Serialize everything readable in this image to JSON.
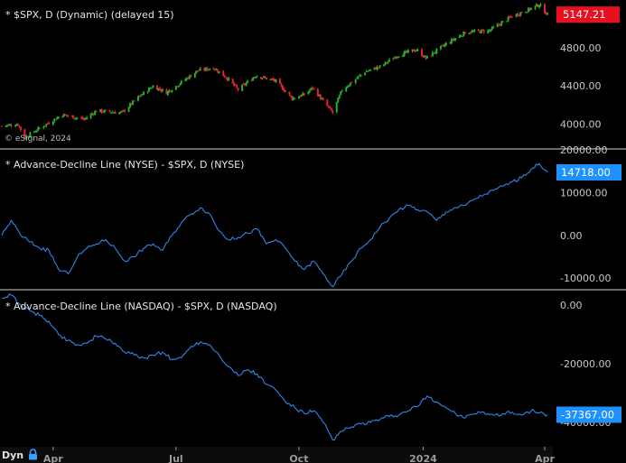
{
  "copyright": "© eSignal, 2024",
  "dyn_label": "Dyn",
  "x_axis": {
    "ticks": [
      {
        "label": "Apr",
        "date": "2023-04-03"
      },
      {
        "label": "Jul",
        "date": "2023-07-03"
      },
      {
        "label": "Oct",
        "date": "2023-10-02"
      },
      {
        "label": "2024",
        "date": "2024-01-02"
      },
      {
        "label": "Apr",
        "date": "2024-04-01"
      }
    ]
  },
  "colors": {
    "background": "#000000",
    "axis_text": "#c8c8c8",
    "separator": "#8a8a8a",
    "candle_up": "#22b32a",
    "candle_down": "#e8232f",
    "line_series": "#2e86e8",
    "price_badge": "#e8101e",
    "value_badge": "#1e90ff",
    "lock_icon": "#3aa0ff"
  },
  "chart_data": [
    {
      "type": "candlestick",
      "title": "* $SPX, D (Dynamic) (delayed 15)",
      "x_range": [
        "2023-02-24",
        "2024-04-03"
      ],
      "ylim": [
        3750,
        5300
      ],
      "y_ticks": [
        {
          "label": "4000.00",
          "value": 4000
        },
        {
          "label": "4400.00",
          "value": 4400
        },
        {
          "label": "4800.00",
          "value": 4800
        }
      ],
      "last_value_label": "5147.21",
      "last_value": 5147.21,
      "close_path": [
        {
          "x": "2023-02-24",
          "y": 3980
        },
        {
          "x": "2023-03-08",
          "y": 4000
        },
        {
          "x": "2023-03-13",
          "y": 3860
        },
        {
          "x": "2023-03-23",
          "y": 3950
        },
        {
          "x": "2023-04-10",
          "y": 4100
        },
        {
          "x": "2023-04-26",
          "y": 4050
        },
        {
          "x": "2023-05-05",
          "y": 4140
        },
        {
          "x": "2023-05-24",
          "y": 4120
        },
        {
          "x": "2023-06-05",
          "y": 4280
        },
        {
          "x": "2023-06-16",
          "y": 4400
        },
        {
          "x": "2023-06-26",
          "y": 4330
        },
        {
          "x": "2023-07-05",
          "y": 4420
        },
        {
          "x": "2023-07-19",
          "y": 4560
        },
        {
          "x": "2023-07-31",
          "y": 4590
        },
        {
          "x": "2023-08-10",
          "y": 4480
        },
        {
          "x": "2023-08-18",
          "y": 4360
        },
        {
          "x": "2023-08-31",
          "y": 4510
        },
        {
          "x": "2023-09-15",
          "y": 4450
        },
        {
          "x": "2023-09-27",
          "y": 4270
        },
        {
          "x": "2023-10-06",
          "y": 4310
        },
        {
          "x": "2023-10-12",
          "y": 4380
        },
        {
          "x": "2023-10-27",
          "y": 4120
        },
        {
          "x": "2023-11-03",
          "y": 4360
        },
        {
          "x": "2023-11-20",
          "y": 4550
        },
        {
          "x": "2023-12-01",
          "y": 4600
        },
        {
          "x": "2023-12-14",
          "y": 4720
        },
        {
          "x": "2023-12-28",
          "y": 4780
        },
        {
          "x": "2024-01-04",
          "y": 4690
        },
        {
          "x": "2024-01-19",
          "y": 4840
        },
        {
          "x": "2024-02-02",
          "y": 4960
        },
        {
          "x": "2024-02-20",
          "y": 4980
        },
        {
          "x": "2024-03-08",
          "y": 5130
        },
        {
          "x": "2024-03-20",
          "y": 5200
        },
        {
          "x": "2024-03-28",
          "y": 5250
        },
        {
          "x": "2024-04-03",
          "y": 5147.21
        }
      ]
    },
    {
      "type": "line",
      "title": "* Advance-Decline Line (NYSE) - $SPX, D (NYSE)",
      "x_range": [
        "2023-02-24",
        "2024-04-03"
      ],
      "ylim": [
        -12500,
        20000
      ],
      "y_ticks": [
        {
          "label": "20000.00",
          "value": 20000
        },
        {
          "label": "10000.00",
          "value": 10000
        },
        {
          "label": "0.00",
          "value": 0
        },
        {
          "label": "-10000.00",
          "value": -10000
        }
      ],
      "last_value_label": "14718.00",
      "last_value": 14718,
      "series": [
        {
          "points": [
            {
              "x": "2023-02-24",
              "y": 0
            },
            {
              "x": "2023-03-03",
              "y": 3500
            },
            {
              "x": "2023-03-10",
              "y": 0
            },
            {
              "x": "2023-03-17",
              "y": -1500
            },
            {
              "x": "2023-03-24",
              "y": -3000
            },
            {
              "x": "2023-03-31",
              "y": -3500
            },
            {
              "x": "2023-04-07",
              "y": -8000
            },
            {
              "x": "2023-04-14",
              "y": -9000
            },
            {
              "x": "2023-04-21",
              "y": -5000
            },
            {
              "x": "2023-04-28",
              "y": -3000
            },
            {
              "x": "2023-05-05",
              "y": -2000
            },
            {
              "x": "2023-05-12",
              "y": -1000
            },
            {
              "x": "2023-05-19",
              "y": -3000
            },
            {
              "x": "2023-05-26",
              "y": -6000
            },
            {
              "x": "2023-06-02",
              "y": -5000
            },
            {
              "x": "2023-06-09",
              "y": -3000
            },
            {
              "x": "2023-06-16",
              "y": -2000
            },
            {
              "x": "2023-06-23",
              "y": -3500
            },
            {
              "x": "2023-06-30",
              "y": 0
            },
            {
              "x": "2023-07-07",
              "y": 3000
            },
            {
              "x": "2023-07-14",
              "y": 5000
            },
            {
              "x": "2023-07-21",
              "y": 6500
            },
            {
              "x": "2023-07-28",
              "y": 5000
            },
            {
              "x": "2023-08-04",
              "y": 1000
            },
            {
              "x": "2023-08-11",
              "y": -1000
            },
            {
              "x": "2023-08-18",
              "y": -500
            },
            {
              "x": "2023-08-25",
              "y": 500
            },
            {
              "x": "2023-09-01",
              "y": 1500
            },
            {
              "x": "2023-09-08",
              "y": -2000
            },
            {
              "x": "2023-09-15",
              "y": -1000
            },
            {
              "x": "2023-09-22",
              "y": -3000
            },
            {
              "x": "2023-09-29",
              "y": -6000
            },
            {
              "x": "2023-10-06",
              "y": -8000
            },
            {
              "x": "2023-10-13",
              "y": -6000
            },
            {
              "x": "2023-10-20",
              "y": -9000
            },
            {
              "x": "2023-10-27",
              "y": -12000
            },
            {
              "x": "2023-11-03",
              "y": -9000
            },
            {
              "x": "2023-11-10",
              "y": -6000
            },
            {
              "x": "2023-11-17",
              "y": -3000
            },
            {
              "x": "2023-11-24",
              "y": -1000
            },
            {
              "x": "2023-12-01",
              "y": 2000
            },
            {
              "x": "2023-12-08",
              "y": 4000
            },
            {
              "x": "2023-12-15",
              "y": 6000
            },
            {
              "x": "2023-12-22",
              "y": 7000
            },
            {
              "x": "2023-12-29",
              "y": 6000
            },
            {
              "x": "2024-01-05",
              "y": 5500
            },
            {
              "x": "2024-01-12",
              "y": 3500
            },
            {
              "x": "2024-01-19",
              "y": 5500
            },
            {
              "x": "2024-01-26",
              "y": 6500
            },
            {
              "x": "2024-02-02",
              "y": 7000
            },
            {
              "x": "2024-02-09",
              "y": 8500
            },
            {
              "x": "2024-02-16",
              "y": 9500
            },
            {
              "x": "2024-02-23",
              "y": 10500
            },
            {
              "x": "2024-03-01",
              "y": 11500
            },
            {
              "x": "2024-03-08",
              "y": 12500
            },
            {
              "x": "2024-03-15",
              "y": 13500
            },
            {
              "x": "2024-03-22",
              "y": 15500
            },
            {
              "x": "2024-03-28",
              "y": 16800
            },
            {
              "x": "2024-04-03",
              "y": 14718
            }
          ]
        }
      ]
    },
    {
      "type": "line",
      "title": "* Advance-Decline Line (NASDAQ) - $SPX, D (NASDAQ)",
      "x_range": [
        "2023-02-24",
        "2024-04-03"
      ],
      "ylim": [
        -48000,
        5000
      ],
      "y_ticks": [
        {
          "label": "0.00",
          "value": 0
        },
        {
          "label": "-20000.00",
          "value": -20000
        },
        {
          "label": "-40000.00",
          "value": -40000
        }
      ],
      "last_value_label": "-37367.00",
      "last_value": -37367,
      "series": [
        {
          "points": [
            {
              "x": "2023-02-24",
              "y": 2500
            },
            {
              "x": "2023-03-03",
              "y": 3500
            },
            {
              "x": "2023-03-10",
              "y": 0
            },
            {
              "x": "2023-03-17",
              "y": -2000
            },
            {
              "x": "2023-03-24",
              "y": -3500
            },
            {
              "x": "2023-03-31",
              "y": -5500
            },
            {
              "x": "2023-04-07",
              "y": -10000
            },
            {
              "x": "2023-04-14",
              "y": -12000
            },
            {
              "x": "2023-04-21",
              "y": -13500
            },
            {
              "x": "2023-04-28",
              "y": -13000
            },
            {
              "x": "2023-05-05",
              "y": -10500
            },
            {
              "x": "2023-05-12",
              "y": -11500
            },
            {
              "x": "2023-05-19",
              "y": -13000
            },
            {
              "x": "2023-05-26",
              "y": -16000
            },
            {
              "x": "2023-06-02",
              "y": -17000
            },
            {
              "x": "2023-06-09",
              "y": -18000
            },
            {
              "x": "2023-06-16",
              "y": -17000
            },
            {
              "x": "2023-06-23",
              "y": -16000
            },
            {
              "x": "2023-06-30",
              "y": -18500
            },
            {
              "x": "2023-07-07",
              "y": -18000
            },
            {
              "x": "2023-07-14",
              "y": -14000
            },
            {
              "x": "2023-07-21",
              "y": -12500
            },
            {
              "x": "2023-07-28",
              "y": -13500
            },
            {
              "x": "2023-08-04",
              "y": -17000
            },
            {
              "x": "2023-08-11",
              "y": -21000
            },
            {
              "x": "2023-08-18",
              "y": -24000
            },
            {
              "x": "2023-08-25",
              "y": -22000
            },
            {
              "x": "2023-09-01",
              "y": -23500
            },
            {
              "x": "2023-09-08",
              "y": -27000
            },
            {
              "x": "2023-09-15",
              "y": -29000
            },
            {
              "x": "2023-09-22",
              "y": -33000
            },
            {
              "x": "2023-09-29",
              "y": -35000
            },
            {
              "x": "2023-10-06",
              "y": -37000
            },
            {
              "x": "2023-10-13",
              "y": -36000
            },
            {
              "x": "2023-10-20",
              "y": -40000
            },
            {
              "x": "2023-10-27",
              "y": -46000
            },
            {
              "x": "2023-11-03",
              "y": -43000
            },
            {
              "x": "2023-11-10",
              "y": -41500
            },
            {
              "x": "2023-11-17",
              "y": -40500
            },
            {
              "x": "2023-11-24",
              "y": -40000
            },
            {
              "x": "2023-12-01",
              "y": -39000
            },
            {
              "x": "2023-12-08",
              "y": -38000
            },
            {
              "x": "2023-12-15",
              "y": -37500
            },
            {
              "x": "2023-12-22",
              "y": -36000
            },
            {
              "x": "2023-12-29",
              "y": -34500
            },
            {
              "x": "2024-01-05",
              "y": -31000
            },
            {
              "x": "2024-01-12",
              "y": -33000
            },
            {
              "x": "2024-01-19",
              "y": -35000
            },
            {
              "x": "2024-01-26",
              "y": -37000
            },
            {
              "x": "2024-02-02",
              "y": -38500
            },
            {
              "x": "2024-02-09",
              "y": -37000
            },
            {
              "x": "2024-02-16",
              "y": -36500
            },
            {
              "x": "2024-02-23",
              "y": -37500
            },
            {
              "x": "2024-03-01",
              "y": -37000
            },
            {
              "x": "2024-03-08",
              "y": -36500
            },
            {
              "x": "2024-03-15",
              "y": -37500
            },
            {
              "x": "2024-03-22",
              "y": -36000
            },
            {
              "x": "2024-03-28",
              "y": -36800
            },
            {
              "x": "2024-04-03",
              "y": -37367
            }
          ]
        }
      ]
    }
  ]
}
